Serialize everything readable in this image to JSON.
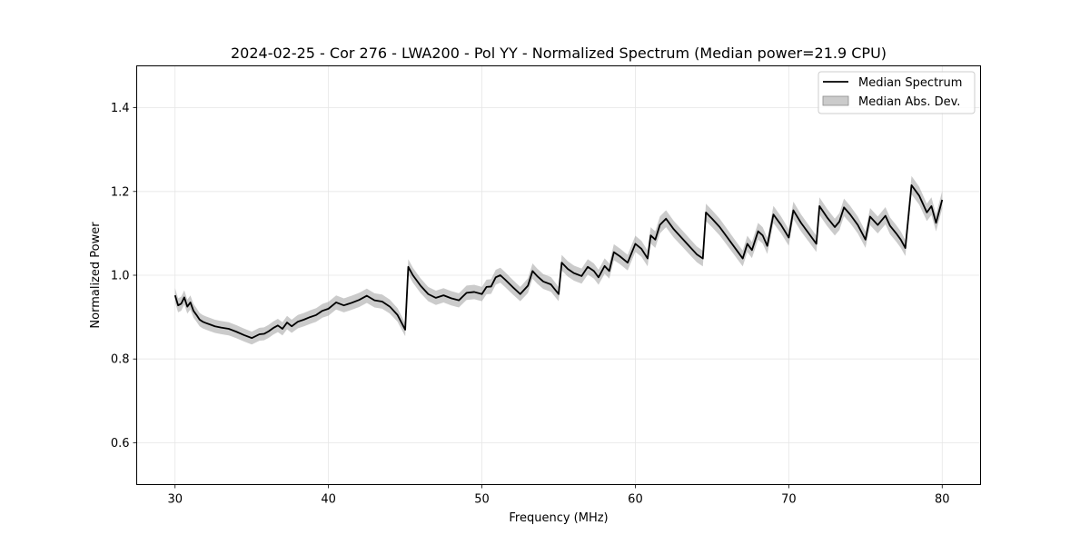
{
  "chart_data": {
    "type": "line",
    "title": "2024-02-25 - Cor 276 - LWA200 - Pol YY - Normalized Spectrum (Median power=21.9 CPU)",
    "xlabel": "Frequency (MHz)",
    "ylabel": "Normalized Power",
    "xlim": [
      27.5,
      82.5
    ],
    "ylim": [
      0.5,
      1.5
    ],
    "xticks": [
      30,
      40,
      50,
      60,
      70,
      80
    ],
    "yticks": [
      0.6,
      0.8,
      1.0,
      1.2,
      1.4
    ],
    "xtick_labels": [
      "30",
      "40",
      "50",
      "60",
      "70",
      "80"
    ],
    "ytick_labels": [
      "0.6",
      "0.8",
      "1.0",
      "1.2",
      "1.4"
    ],
    "grid": true,
    "legend_position": "top-right",
    "legend": [
      "Median Spectrum",
      "Median Abs. Dev."
    ],
    "colors": {
      "line": "#000000",
      "band": "#a0a0a0",
      "grid": "#e6e6e6"
    },
    "series": [
      {
        "name": "Median Spectrum",
        "x": [
          30.0,
          30.2,
          30.4,
          30.6,
          30.8,
          31.0,
          31.2,
          31.4,
          31.6,
          31.8,
          32.0,
          32.3,
          32.6,
          33.0,
          33.5,
          34.0,
          34.5,
          35.0,
          35.5,
          35.8,
          36.1,
          36.4,
          36.7,
          37.0,
          37.3,
          37.6,
          38.0,
          38.4,
          38.8,
          39.2,
          39.6,
          40.0,
          40.5,
          41.0,
          41.5,
          42.0,
          42.5,
          43.0,
          43.5,
          44.0,
          44.5,
          45.0,
          45.2,
          45.5,
          46.0,
          46.5,
          47.0,
          47.5,
          48.0,
          48.5,
          49.0,
          49.5,
          50.0,
          50.3,
          50.6,
          50.9,
          51.2,
          51.5,
          52.0,
          52.5,
          53.0,
          53.3,
          53.6,
          54.0,
          54.5,
          55.0,
          55.2,
          55.6,
          56.0,
          56.5,
          56.9,
          57.3,
          57.6,
          58.0,
          58.3,
          58.6,
          59.0,
          59.5,
          60.0,
          60.4,
          60.8,
          61.0,
          61.3,
          61.6,
          62.0,
          62.5,
          63.0,
          63.5,
          64.0,
          64.4,
          64.6,
          65.0,
          65.5,
          66.0,
          66.5,
          67.0,
          67.3,
          67.6,
          68.0,
          68.3,
          68.6,
          69.0,
          69.5,
          70.0,
          70.3,
          70.8,
          71.3,
          71.8,
          72.0,
          72.5,
          73.0,
          73.3,
          73.6,
          74.0,
          74.5,
          75.0,
          75.3,
          75.8,
          76.3,
          76.6,
          77.0,
          77.3,
          77.6,
          78.0,
          78.5,
          79.0,
          79.3,
          79.6,
          80.0
        ],
        "values": [
          0.952,
          0.928,
          0.932,
          0.947,
          0.925,
          0.935,
          0.915,
          0.905,
          0.894,
          0.889,
          0.886,
          0.882,
          0.878,
          0.875,
          0.872,
          0.865,
          0.857,
          0.85,
          0.859,
          0.86,
          0.866,
          0.874,
          0.88,
          0.872,
          0.887,
          0.878,
          0.889,
          0.894,
          0.9,
          0.905,
          0.915,
          0.92,
          0.935,
          0.928,
          0.934,
          0.941,
          0.951,
          0.94,
          0.937,
          0.925,
          0.905,
          0.87,
          1.02,
          1.0,
          0.975,
          0.955,
          0.946,
          0.952,
          0.945,
          0.94,
          0.958,
          0.96,
          0.955,
          0.972,
          0.973,
          0.995,
          1.0,
          0.99,
          0.972,
          0.955,
          0.975,
          1.01,
          0.998,
          0.985,
          0.978,
          0.955,
          1.03,
          1.015,
          1.005,
          0.998,
          1.02,
          1.01,
          0.995,
          1.022,
          1.01,
          1.055,
          1.045,
          1.03,
          1.075,
          1.063,
          1.04,
          1.095,
          1.085,
          1.12,
          1.135,
          1.11,
          1.09,
          1.07,
          1.05,
          1.04,
          1.15,
          1.135,
          1.115,
          1.09,
          1.065,
          1.04,
          1.075,
          1.06,
          1.105,
          1.095,
          1.07,
          1.145,
          1.12,
          1.09,
          1.155,
          1.125,
          1.1,
          1.075,
          1.165,
          1.138,
          1.115,
          1.128,
          1.162,
          1.145,
          1.12,
          1.085,
          1.14,
          1.12,
          1.142,
          1.118,
          1.1,
          1.085,
          1.065,
          1.215,
          1.19,
          1.15,
          1.165,
          1.125,
          1.18
        ]
      },
      {
        "name": "Median Abs. Dev.",
        "type": "band",
        "relative_half_width": 0.018
      }
    ]
  }
}
